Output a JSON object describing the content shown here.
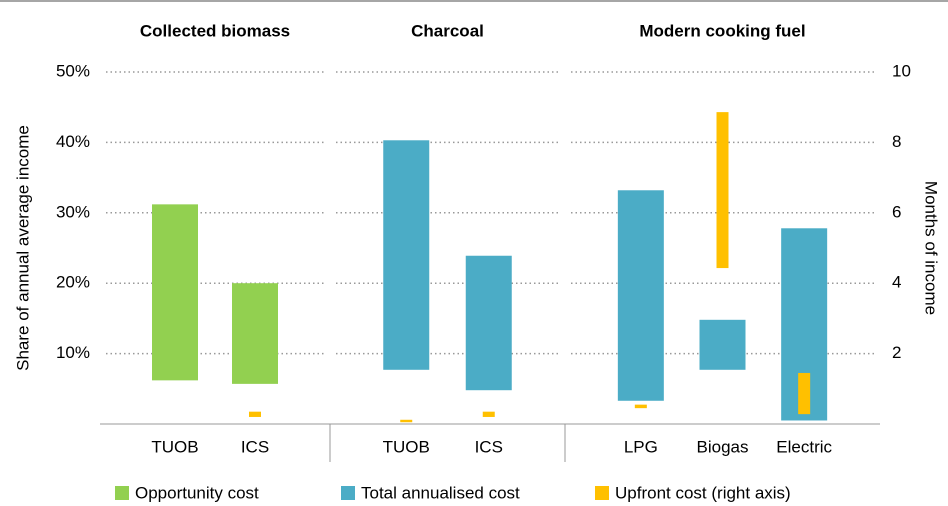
{
  "chart_data": {
    "type": "floating_bar",
    "panels": [
      {
        "title": "Collected biomass",
        "categories": [
          "TUOB",
          "ICS"
        ]
      },
      {
        "title": "Charcoal",
        "categories": [
          "TUOB",
          "ICS"
        ]
      },
      {
        "title": "Modern cooking fuel",
        "categories": [
          "LPG",
          "Biogas",
          "Electric"
        ]
      }
    ],
    "ylabel": "Share of annual average income",
    "y2label": "Months of income",
    "ylim": [
      0,
      50
    ],
    "yticks": [
      {
        "value": 10,
        "label": "10%"
      },
      {
        "value": 20,
        "label": "20%"
      },
      {
        "value": 30,
        "label": "30%"
      },
      {
        "value": 40,
        "label": "40%"
      },
      {
        "value": 50,
        "label": "50%"
      }
    ],
    "y2lim": [
      0,
      10
    ],
    "y2ticks": [
      2,
      4,
      6,
      8,
      10
    ],
    "grid": true,
    "legend": "bottom",
    "series": [
      {
        "name": "Opportunity cost",
        "color": "#92d050",
        "values": [
          [
            6.2,
            31.2
          ],
          [
            5.7,
            20
          ],
          null,
          null,
          null,
          null,
          null
        ]
      },
      {
        "name": "Total annualised cost",
        "color": "#4bacc6",
        "values": [
          null,
          null,
          [
            7.7,
            40.3
          ],
          [
            4.8,
            23.9
          ],
          [
            3.3,
            33.2
          ],
          [
            7.7,
            14.8
          ],
          [
            0.5,
            27.8
          ]
        ]
      },
      {
        "name": "Upfront cost (right axis)",
        "color": "#ffc000",
        "axis": "y2",
        "values": [
          null,
          [
            0.2,
            0.35
          ],
          [
            0.05,
            0.12
          ],
          [
            0.2,
            0.35
          ],
          [
            0.45,
            0.55
          ],
          [
            4.43,
            8.86
          ],
          [
            0.28,
            1.45
          ]
        ]
      }
    ]
  }
}
